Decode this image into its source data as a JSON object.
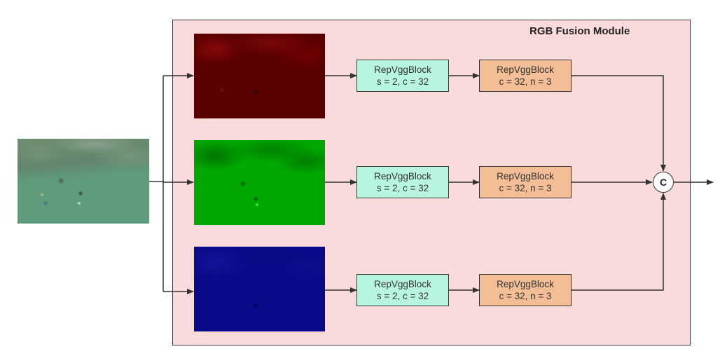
{
  "module": {
    "title": "RGB Fusion Module"
  },
  "input_image": {
    "description_color": "#5e9a78"
  },
  "channels": [
    {
      "name": "red",
      "color": "#7a0000"
    },
    {
      "name": "green",
      "color": "#00a800"
    },
    {
      "name": "blue",
      "color": "#0a0a8a"
    }
  ],
  "rows": [
    {
      "rep_line1": "RepVggBlock",
      "rep_line2": "s = 2, c = 32",
      "conv_line1": "RepVggBlock",
      "conv_line2": "c = 32, n = 3"
    },
    {
      "rep_line1": "RepVggBlock",
      "rep_line2": "s = 2, c = 32",
      "conv_line1": "RepVggBlock",
      "conv_line2": "c = 32, n = 3"
    },
    {
      "rep_line1": "RepVggBlock",
      "rep_line2": "s = 2, c = 32",
      "conv_line1": "RepVggBlock",
      "conv_line2": "c = 32, n = 3"
    }
  ],
  "concat": {
    "label": "C"
  },
  "colors": {
    "module_bg": "#f9dbdb",
    "rep_block": "#b8f5df",
    "conv_block": "#f3be95",
    "line": "#333333"
  }
}
